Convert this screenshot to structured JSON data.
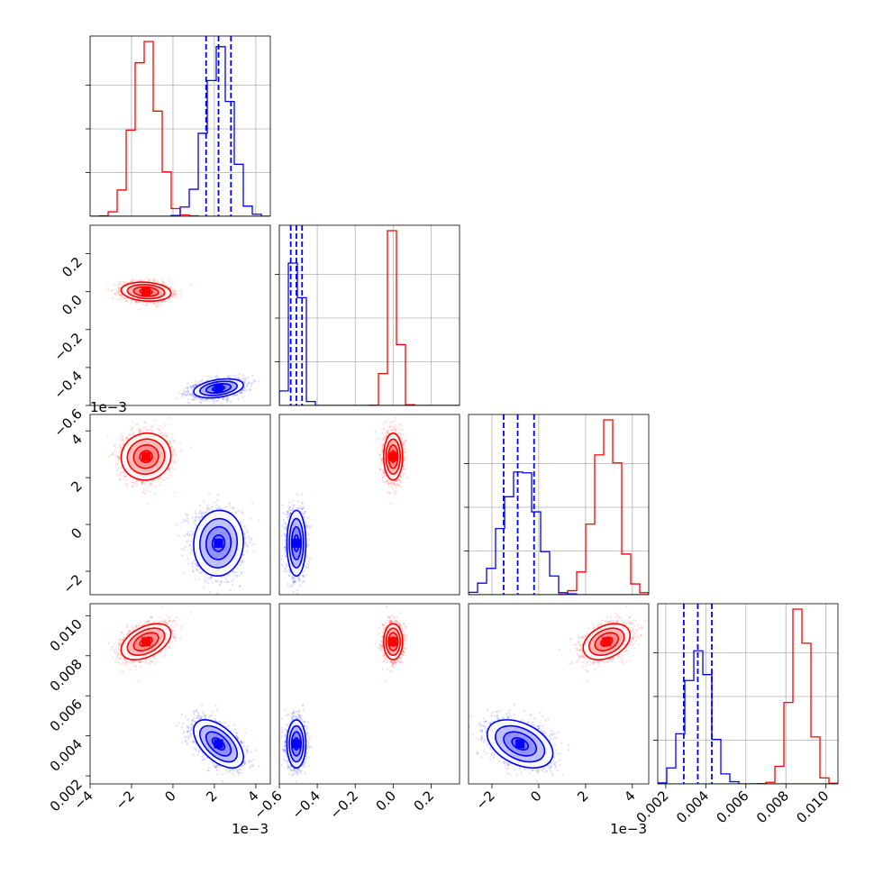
{
  "chart_data": {
    "type": "scatter",
    "subtype": "corner-plot",
    "grid": true,
    "colors": {
      "series_a": "#ff0000",
      "series_b": "#0000ff"
    },
    "series": [
      {
        "color": "#ff0000",
        "mean": [
          -0.0013,
          0.0,
          0.0029,
          0.0087
        ],
        "std": [
          0.0006,
          0.025,
          0.0005,
          0.00045
        ],
        "corr": [
          [
            1,
            -0.15,
            0.05,
            0.45
          ],
          [
            -0.15,
            1,
            0.0,
            0.0
          ],
          [
            0.05,
            0.0,
            1,
            0.35
          ],
          [
            0.45,
            0.0,
            0.35,
            1
          ]
        ],
        "quantiles_shown": false
      },
      {
        "color": "#0000ff",
        "mean": [
          0.0022,
          -0.51,
          -0.0008,
          0.0036
        ],
        "std": [
          0.0006,
          0.025,
          0.0007,
          0.0006
        ],
        "corr": [
          [
            1,
            0.35,
            0.05,
            -0.55
          ],
          [
            0.35,
            1,
            0.0,
            0.0
          ],
          [
            0.05,
            0.0,
            1,
            -0.4
          ],
          [
            -0.55,
            0.0,
            -0.4,
            1
          ]
        ],
        "quantiles_shown": true,
        "quantiles": [
          [
            0.0016,
            0.0022,
            0.0028
          ],
          [
            -0.54,
            -0.51,
            -0.48
          ],
          [
            -0.0015,
            -0.0009,
            -0.0002
          ],
          [
            0.0029,
            0.0036,
            0.0043
          ]
        ]
      }
    ],
    "axes": [
      {
        "range": [
          -0.004,
          0.0047
        ],
        "ticks": [
          -0.004,
          -0.002,
          0.0,
          0.002,
          0.004
        ],
        "tick_labels": [
          "−4",
          "−2",
          "0",
          "2",
          "4"
        ],
        "offset": "1e−3"
      },
      {
        "range": [
          -0.6,
          0.35
        ],
        "ticks": [
          -0.6,
          -0.4,
          -0.2,
          0.0,
          0.2
        ],
        "tick_labels": [
          "−0.6",
          "−0.4",
          "−0.2",
          "0.0",
          "0.2"
        ],
        "offset": ""
      },
      {
        "range": [
          -0.003,
          0.0047
        ],
        "ticks": [
          -0.002,
          0.0,
          0.002,
          0.004
        ],
        "tick_labels": [
          "−2",
          "0",
          "2",
          "4"
        ],
        "offset": "1e−3"
      },
      {
        "range": [
          0.0016,
          0.0106
        ],
        "ticks": [
          0.002,
          0.004,
          0.006,
          0.008,
          0.01
        ],
        "tick_labels": [
          "0.002",
          "0.004",
          "0.006",
          "0.008",
          "0.010"
        ],
        "offset": ""
      }
    ]
  }
}
